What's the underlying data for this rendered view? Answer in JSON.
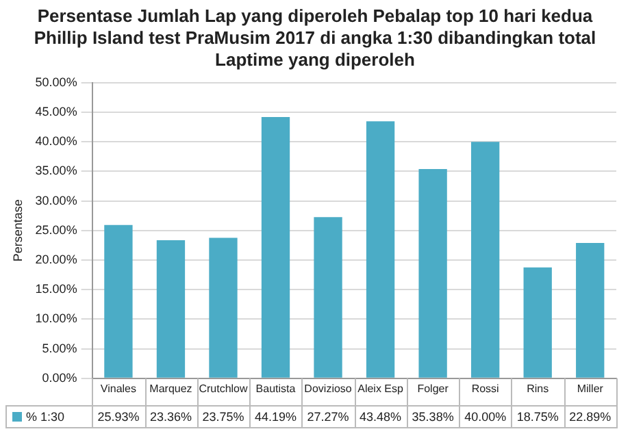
{
  "chart_data": {
    "type": "bar",
    "title": "Persentase Jumlah Lap yang diperoleh Pebalap top 10 hari kedua Phillip Island test PraMusim 2017 di angka 1:30 dibandingkan total Laptime yang diperoleh",
    "ylabel": "Persentase",
    "categories": [
      "Vinales",
      "Marquez",
      "Crutchlow",
      "Bautista",
      "Dovizioso",
      "Aleix Esp",
      "Folger",
      "Rossi",
      "Rins",
      "Miller"
    ],
    "series": [
      {
        "name": "% 1:30",
        "color": "#4bacc6",
        "values": [
          25.93,
          23.36,
          23.75,
          44.19,
          27.27,
          43.48,
          35.38,
          40.0,
          18.75,
          22.89
        ],
        "value_labels": [
          "25.93%",
          "23.36%",
          "23.75%",
          "44.19%",
          "27.27%",
          "43.48%",
          "35.38%",
          "40.00%",
          "18.75%",
          "22.89%"
        ]
      }
    ],
    "ylim": [
      0,
      50
    ],
    "yticks": [
      {
        "value": 0,
        "label": "0.00%"
      },
      {
        "value": 5,
        "label": "5.00%"
      },
      {
        "value": 10,
        "label": "10.00%"
      },
      {
        "value": 15,
        "label": "15.00%"
      },
      {
        "value": 20,
        "label": "20.00%"
      },
      {
        "value": 25,
        "label": "25.00%"
      },
      {
        "value": 30,
        "label": "30.00%"
      },
      {
        "value": 35,
        "label": "35.00%"
      },
      {
        "value": 40,
        "label": "40.00%"
      },
      {
        "value": 45,
        "label": "45.00%"
      },
      {
        "value": 50,
        "label": "50.00%"
      }
    ],
    "grid": "y",
    "legend": "bottom"
  }
}
